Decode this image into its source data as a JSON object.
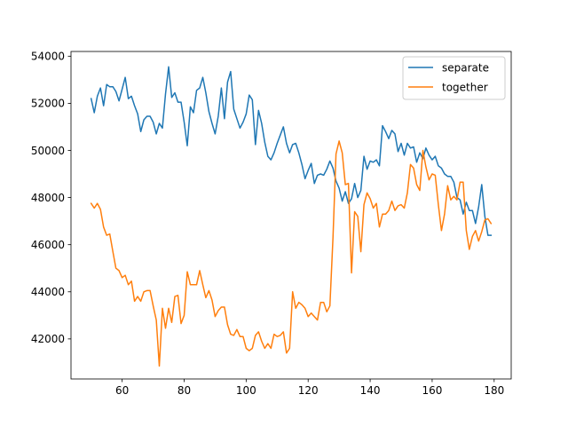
{
  "chart_data": {
    "type": "line",
    "title": "",
    "xlabel": "",
    "ylabel": "",
    "xlim": [
      43.5,
      185.5
    ],
    "ylim": [
      40300,
      54200
    ],
    "x_ticks": [
      60,
      80,
      100,
      120,
      140,
      160,
      180
    ],
    "y_ticks": [
      42000,
      44000,
      46000,
      48000,
      50000,
      52000,
      54000
    ],
    "grid": false,
    "legend_position": "upper right",
    "x": [
      50,
      51,
      52,
      53,
      54,
      55,
      56,
      57,
      58,
      59,
      60,
      61,
      62,
      63,
      64,
      65,
      66,
      67,
      68,
      69,
      70,
      71,
      72,
      73,
      74,
      75,
      76,
      77,
      78,
      79,
      80,
      81,
      82,
      83,
      84,
      85,
      86,
      87,
      88,
      89,
      90,
      91,
      92,
      93,
      94,
      95,
      96,
      97,
      98,
      99,
      100,
      101,
      102,
      103,
      104,
      105,
      106,
      107,
      108,
      109,
      110,
      111,
      112,
      113,
      114,
      115,
      116,
      117,
      118,
      119,
      120,
      121,
      122,
      123,
      124,
      125,
      126,
      127,
      128,
      129,
      130,
      131,
      132,
      133,
      134,
      135,
      136,
      137,
      138,
      139,
      140,
      141,
      142,
      143,
      144,
      145,
      146,
      147,
      148,
      149,
      150,
      151,
      152,
      153,
      154,
      155,
      156,
      157,
      158,
      159,
      160,
      161,
      162,
      163,
      164,
      165,
      166,
      167,
      168,
      169,
      170,
      171,
      172,
      173,
      174,
      175,
      176,
      177,
      178,
      179
    ],
    "series": [
      {
        "name": "separate",
        "color": "#1f77b4",
        "values": [
          52200,
          51600,
          52300,
          52650,
          51900,
          52800,
          52700,
          52700,
          52500,
          52100,
          52600,
          53100,
          52200,
          52300,
          51900,
          51550,
          50800,
          51300,
          51450,
          51450,
          51200,
          50700,
          51150,
          50950,
          52400,
          53550,
          52250,
          52450,
          52050,
          52050,
          51200,
          50200,
          51850,
          51600,
          52550,
          52650,
          53100,
          52450,
          51650,
          51150,
          50700,
          51450,
          52650,
          51350,
          52900,
          53350,
          51750,
          51350,
          50950,
          51200,
          51550,
          52350,
          52150,
          50250,
          51700,
          51150,
          50350,
          49750,
          49600,
          49900,
          50300,
          50650,
          51000,
          50300,
          49900,
          50250,
          50300,
          49900,
          49400,
          48800,
          49150,
          49450,
          48600,
          48950,
          49000,
          48950,
          49200,
          49550,
          49250,
          48700,
          48400,
          47850,
          48250,
          47750,
          47950,
          48600,
          48000,
          48300,
          49750,
          49200,
          49550,
          49500,
          49600,
          49350,
          51050,
          50800,
          50500,
          50850,
          50700,
          49950,
          50300,
          49800,
          50300,
          50100,
          50150,
          49500,
          49900,
          49650,
          50100,
          49800,
          49600,
          49750,
          49350,
          49250,
          49000,
          48900,
          48900,
          48650,
          48000,
          47900,
          47300,
          47800,
          47450,
          47450,
          46900,
          47600,
          48550,
          47200,
          46400,
          46400
        ]
      },
      {
        "name": "together",
        "color": "#ff7f0e",
        "values": [
          47750,
          47550,
          47750,
          47500,
          46750,
          46400,
          46450,
          45700,
          45000,
          44900,
          44600,
          44700,
          44300,
          44450,
          43600,
          43800,
          43600,
          44000,
          44050,
          44050,
          43400,
          42800,
          40850,
          43300,
          42450,
          43300,
          42700,
          43800,
          43850,
          42650,
          43000,
          44850,
          44300,
          44300,
          44300,
          44900,
          44300,
          43750,
          44050,
          43650,
          42950,
          43200,
          43350,
          43350,
          42600,
          42200,
          42150,
          42400,
          42100,
          42100,
          41600,
          41500,
          41600,
          42150,
          42300,
          41900,
          41600,
          41800,
          41600,
          42200,
          42100,
          42150,
          42300,
          41400,
          41600,
          44000,
          43300,
          43550,
          43450,
          43300,
          42950,
          43100,
          42950,
          42800,
          43550,
          43550,
          43150,
          43400,
          46300,
          49850,
          50400,
          49900,
          48550,
          48600,
          44800,
          47400,
          47200,
          45700,
          47700,
          48200,
          47950,
          47550,
          47750,
          46750,
          47300,
          47300,
          47450,
          47850,
          47450,
          47650,
          47700,
          47550,
          48200,
          49400,
          49250,
          48550,
          48300,
          50000,
          49300,
          48750,
          49000,
          48950,
          47700,
          46600,
          47300,
          48500,
          47900,
          48050,
          47900,
          48650,
          48650,
          46600,
          45800,
          46350,
          46600,
          46150,
          46550,
          47050,
          47100,
          46900
        ]
      }
    ]
  }
}
